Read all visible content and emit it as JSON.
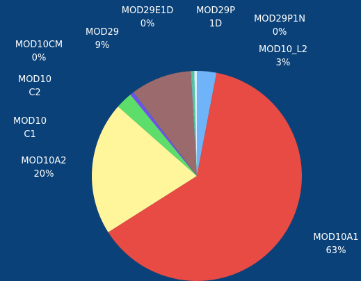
{
  "chart_data": {
    "type": "pie",
    "categories": [
      "MOD10_L2",
      "MOD10A1",
      "MOD10A2",
      "MOD10C1",
      "MOD10C2",
      "MOD10CM",
      "MOD29",
      "MOD29E1D",
      "MOD29P1D",
      "MOD29P1N"
    ],
    "values": [
      3,
      63,
      20.5,
      2.6,
      0.5,
      0.1,
      9.4,
      0.1,
      0.4,
      0.4
    ],
    "value_labels": [
      "3%",
      "63%",
      "20%",
      null,
      null,
      "0%",
      "9%",
      "0%",
      null,
      "0%"
    ],
    "colors": [
      "#6fb4f8",
      "#e84a44",
      "#fff59a",
      "#5ddd6a",
      "#7b4cf0",
      "#3a7fd0",
      "#9a6a6c",
      "#8fb0c8",
      "#4fc89a",
      "#d8ecff"
    ]
  }
}
